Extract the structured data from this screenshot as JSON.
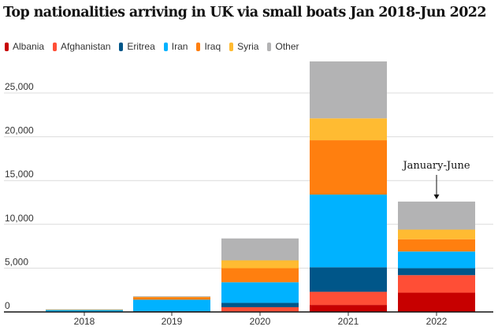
{
  "chart_data": {
    "type": "bar",
    "stacked": true,
    "title": "Top nationalities arriving in UK via small boats Jan 2018-Jun 2022",
    "categories": [
      "2018",
      "2019",
      "2020",
      "2021",
      "2022"
    ],
    "series": [
      {
        "name": "Albania",
        "color": "#c70000",
        "values": [
          0,
          30,
          60,
          800,
          2200
        ]
      },
      {
        "name": "Afghanistan",
        "color": "#ff4e36",
        "values": [
          20,
          30,
          480,
          1500,
          2000
        ]
      },
      {
        "name": "Eritrea",
        "color": "#005689",
        "values": [
          30,
          40,
          500,
          2800,
          800
        ]
      },
      {
        "name": "Iran",
        "color": "#00b2ff",
        "values": [
          200,
          1300,
          2350,
          8300,
          1900
        ]
      },
      {
        "name": "Iraq",
        "color": "#ff7f0f",
        "values": [
          10,
          300,
          1600,
          6200,
          1400
        ]
      },
      {
        "name": "Syria",
        "color": "#ffbb32",
        "values": [
          5,
          20,
          900,
          2500,
          1100
        ]
      },
      {
        "name": "Other",
        "color": "#b3b3b4",
        "values": [
          35,
          80,
          2500,
          6500,
          3200
        ]
      }
    ],
    "yticks": [
      0,
      5000,
      10000,
      15000,
      20000,
      25000
    ],
    "ytick_labels": [
      "0",
      "5,000",
      "10,000",
      "15,000",
      "20,000",
      "25,000"
    ],
    "ylim": [
      0,
      28500
    ],
    "grid": true,
    "legend_position": "top-left",
    "annotation": {
      "text": "January-June",
      "category": "2022"
    }
  }
}
